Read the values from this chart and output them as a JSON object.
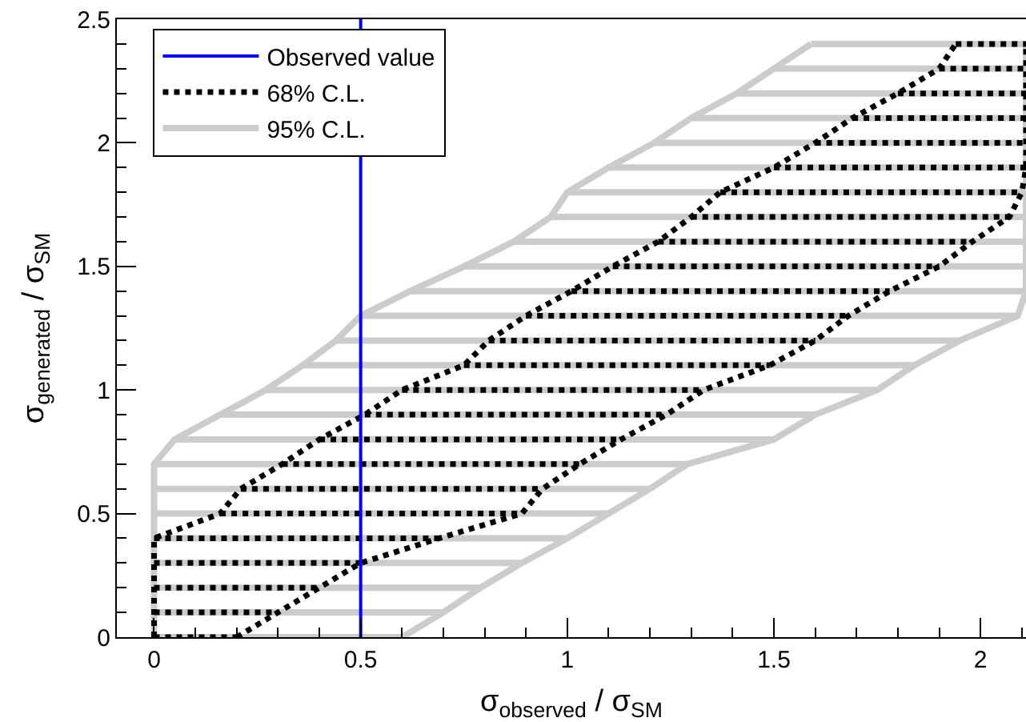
{
  "chart_data": {
    "type": "line",
    "xlabel": "σ$_{observed}$ / σ$_{SM}$",
    "ylabel": "σ$_{generated}$ / σ$_{SM}$",
    "xlim": [
      -0.09,
      2.11
    ],
    "ylim": [
      0,
      2.5
    ],
    "xticks": [
      0,
      0.5,
      1,
      1.5,
      2
    ],
    "yticks": [
      0,
      0.5,
      1,
      1.5,
      2,
      2.5
    ],
    "legend": "top left",
    "ref_lines": [
      {
        "axis": "x",
        "value": 0.5,
        "label": "Observed value",
        "color": "#0000ff",
        "line_style": "solid"
      }
    ],
    "series": [
      {
        "name": "68% C.L.",
        "color": "#000000",
        "line_style": "dotted",
        "x": [
          0,
          0,
          0,
          0,
          0,
          0.16,
          0.21,
          0.31,
          0.4,
          0.51,
          0.6,
          0.75,
          0.81,
          0.9,
          1.01,
          1.11,
          1.22,
          1.3,
          1.37,
          1.5,
          1.6,
          1.69,
          1.8,
          1.9,
          1.94
        ],
        "values": [
          0,
          0.1,
          0.2,
          0.3,
          0.4,
          0.5,
          0.6,
          0.7,
          0.8,
          0.9,
          1.0,
          1.1,
          1.2,
          1.3,
          1.4,
          1.5,
          1.6,
          1.7,
          1.8,
          1.9,
          2.0,
          2.1,
          2.2,
          2.3,
          2.4
        ],
        "xerrors": [
          [
            0,
            0.2
          ],
          [
            0,
            0.3
          ],
          [
            0,
            0.4
          ],
          [
            0,
            0.5
          ],
          [
            0,
            0.69
          ],
          [
            0.16,
            0.89
          ],
          [
            0.21,
            0.94
          ],
          [
            0.31,
            1.03
          ],
          [
            0.4,
            1.13
          ],
          [
            0.51,
            1.24
          ],
          [
            0.6,
            1.33
          ],
          [
            0.75,
            1.49
          ],
          [
            0.81,
            1.6
          ],
          [
            0.9,
            1.68
          ],
          [
            1.01,
            1.78
          ],
          [
            1.11,
            1.9
          ],
          [
            1.22,
            1.98
          ],
          [
            1.3,
            2.07
          ],
          [
            1.37,
            2.1
          ],
          [
            1.5,
            2.11
          ],
          [
            1.6,
            2.11
          ],
          [
            1.69,
            2.11
          ],
          [
            1.8,
            2.11
          ],
          [
            1.9,
            2.11
          ],
          [
            1.94,
            2.11
          ]
        ]
      },
      {
        "color": "#000000",
        "line_style": "dotted",
        "x": [
          0.2,
          0.3,
          0.4,
          0.5,
          0.69,
          0.89,
          0.94,
          1.03,
          1.13,
          1.24,
          1.33,
          1.49,
          1.6,
          1.68,
          1.78,
          1.9,
          1.98,
          2.07,
          2.1,
          2.11,
          2.11,
          2.11,
          2.11,
          2.11,
          2.11
        ],
        "values": [
          0,
          0.1,
          0.2,
          0.3,
          0.4,
          0.5,
          0.6,
          0.7,
          0.8,
          0.9,
          1.0,
          1.1,
          1.2,
          1.3,
          1.4,
          1.5,
          1.6,
          1.7,
          1.8,
          1.9,
          2.0,
          2.1,
          2.2,
          2.3,
          2.4
        ]
      },
      {
        "name": "95% C.L.",
        "color": "#cccccc",
        "line_style": "solid",
        "x": [
          0,
          0,
          0,
          0,
          0,
          0,
          0,
          0,
          0.05,
          0.16,
          0.27,
          0.36,
          0.44,
          0.5,
          0.62,
          0.75,
          0.87,
          0.96,
          1.0,
          1.1,
          1.21,
          1.3,
          1.41,
          1.5,
          1.59
        ],
        "values": [
          0,
          0.1,
          0.2,
          0.3,
          0.4,
          0.5,
          0.6,
          0.7,
          0.8,
          0.9,
          1.0,
          1.1,
          1.2,
          1.3,
          1.4,
          1.5,
          1.6,
          1.7,
          1.8,
          1.9,
          2.0,
          2.1,
          2.2,
          2.3,
          2.4
        ],
        "xerrors": [
          [
            0,
            0.6
          ],
          [
            0,
            0.7
          ],
          [
            0,
            0.79
          ],
          [
            0,
            0.89
          ],
          [
            0,
            1.0
          ],
          [
            0,
            1.1
          ],
          [
            0,
            1.2
          ],
          [
            0,
            1.29
          ],
          [
            0.05,
            1.5
          ],
          [
            0.16,
            1.6
          ],
          [
            0.27,
            1.75
          ],
          [
            0.36,
            1.84
          ],
          [
            0.44,
            1.95
          ],
          [
            0.5,
            2.09
          ],
          [
            0.62,
            2.11
          ],
          [
            0.75,
            2.11
          ],
          [
            0.87,
            2.11
          ],
          [
            0.96,
            2.11
          ],
          [
            1.0,
            2.11
          ],
          [
            1.1,
            2.11
          ],
          [
            1.21,
            2.11
          ],
          [
            1.3,
            2.11
          ],
          [
            1.41,
            2.11
          ],
          [
            1.5,
            2.11
          ],
          [
            1.59,
            2.11
          ]
        ]
      },
      {
        "color": "#cccccc",
        "line_style": "solid",
        "x": [
          0.6,
          0.7,
          0.79,
          0.89,
          1.0,
          1.1,
          1.2,
          1.29,
          1.5,
          1.6,
          1.75,
          1.84,
          1.95,
          2.09,
          2.11,
          2.11,
          2.11,
          2.11,
          2.11,
          2.11,
          2.11,
          2.11,
          2.11,
          2.11,
          2.11
        ],
        "values": [
          0,
          0.1,
          0.2,
          0.3,
          0.4,
          0.5,
          0.6,
          0.7,
          0.8,
          0.9,
          1.0,
          1.1,
          1.2,
          1.3,
          1.4,
          1.5,
          1.6,
          1.7,
          1.8,
          1.9,
          2.0,
          2.1,
          2.2,
          2.3,
          2.4
        ]
      }
    ]
  }
}
